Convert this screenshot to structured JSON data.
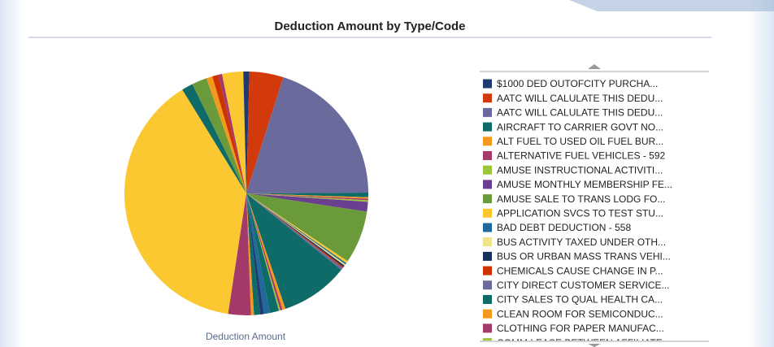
{
  "chart_data": {
    "type": "pie",
    "title": "Deduction Amount by Type/Code",
    "series_label": "Deduction Amount",
    "categories": [
      "$1000 DED OUTOFCITY PURCHA...",
      "AATC WILL CALULATE THIS DEDU...",
      "AATC WILL CALULATE THIS DEDU...",
      "AIRCRAFT TO CARRIER GOVT NO...",
      "ALT FUEL TO USED OIL FUEL BUR...",
      "ALTERNATIVE FUEL VEHICLES - 592",
      "AMUSE INSTRUCTIONAL ACTIVITI...",
      "AMUSE MONTHLY MEMBERSHIP FE...",
      "AMUSE SALE TO TRANS LODG FO...",
      "APPLICATION SVCS TO TEST STU...",
      "BAD DEBT DEDUCTION - 558",
      "BUS ACTIVITY TAXED UNDER OTH...",
      "BUS OR URBAN MASS TRANS VEHI...",
      "CHEMICALS CAUSE CHANGE IN P...",
      "CITY  DIRECT CUSTOMER SERVICE...",
      "CITY SALES TO QUAL HEALTH CA...",
      "CLEAN ROOM FOR SEMICONDUC...",
      "CLOTHING FOR PAPER MANUFAC...",
      "COMM LEASE BETWEEN AFFILIATE",
      null,
      null,
      null,
      null,
      null,
      null,
      null,
      null,
      null,
      null,
      null,
      null,
      null,
      null
    ],
    "values": [
      0.4,
      4.5,
      20,
      0.6,
      0.2,
      0.2,
      0.2,
      1.3,
      7,
      0.3,
      0.2,
      0.2,
      0.2,
      0.2,
      0.3,
      9,
      0.4,
      0.3,
      0.2,
      1.2,
      0.8,
      0.5,
      0.8,
      0.4,
      3,
      38.8,
      1.5,
      2,
      0.8,
      0.8,
      0.5,
      2.8,
      0.4
    ],
    "colors": [
      "#1f3a6e",
      "#d23a0c",
      "#6a6a9c",
      "#0f6b68",
      "#f39a1c",
      "#a43a6a",
      "#9cc43c",
      "#6a3f90",
      "#6a9a3a",
      "#fbc832",
      "#1f6a9a",
      "#eee48c",
      "#17305a",
      "#cc3300",
      "#6a6a9c",
      "#0f6b68",
      "#f39a1c",
      "#a43a6a",
      "#9cc43c",
      "#0f6b68",
      "#1f6a9a",
      "#1f3a6e",
      "#0f6b68",
      "#f39a1c",
      "#a43a6a",
      "#fbc832",
      "#0f6b68",
      "#6a9a3a",
      "#f39a1c",
      "#cc3300",
      "#a43a6a",
      "#fbc832",
      "#1f3a6e"
    ]
  }
}
